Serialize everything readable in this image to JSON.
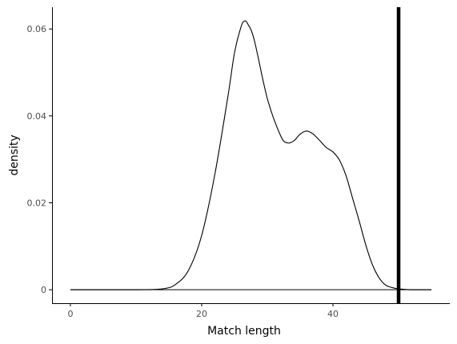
{
  "chart_data": {
    "type": "area",
    "title": "",
    "xlabel": "Match length",
    "ylabel": "density",
    "xlim": [
      -2.8,
      57.8
    ],
    "ylim": [
      -0.0031,
      0.065
    ],
    "x_ticks": [
      0,
      20,
      40
    ],
    "x_tick_labels": [
      "0",
      "20",
      "40"
    ],
    "y_ticks": [
      0,
      0.02,
      0.04,
      0.06
    ],
    "y_tick_labels": [
      "0",
      "0.02",
      "0.04",
      "0.06"
    ],
    "grid": false,
    "legend": "none",
    "series": [
      {
        "x": [
          0,
          10,
          14,
          16,
          18,
          20,
          22,
          24,
          25,
          26,
          26.5,
          27,
          28,
          30,
          32,
          33,
          34,
          35,
          36,
          37,
          38,
          39,
          40,
          41,
          42,
          43,
          44,
          45,
          46,
          47,
          48,
          49,
          50,
          52,
          55
        ],
        "y": [
          0,
          0,
          0.0002,
          0.0012,
          0.0045,
          0.0125,
          0.0265,
          0.0445,
          0.0545,
          0.0605,
          0.0618,
          0.0612,
          0.0575,
          0.044,
          0.0355,
          0.0338,
          0.0342,
          0.0358,
          0.0365,
          0.0358,
          0.0343,
          0.0327,
          0.0317,
          0.0298,
          0.0262,
          0.021,
          0.0158,
          0.0103,
          0.0058,
          0.0028,
          0.0011,
          0.0005,
          0.0002,
          0,
          0
        ]
      }
    ],
    "reference_line": {
      "orientation": "vertical",
      "x": 50
    },
    "colors": {
      "line": "#000000",
      "axis": "#000000",
      "tick_label": "#4d4d4d",
      "background": "#ffffff"
    }
  }
}
